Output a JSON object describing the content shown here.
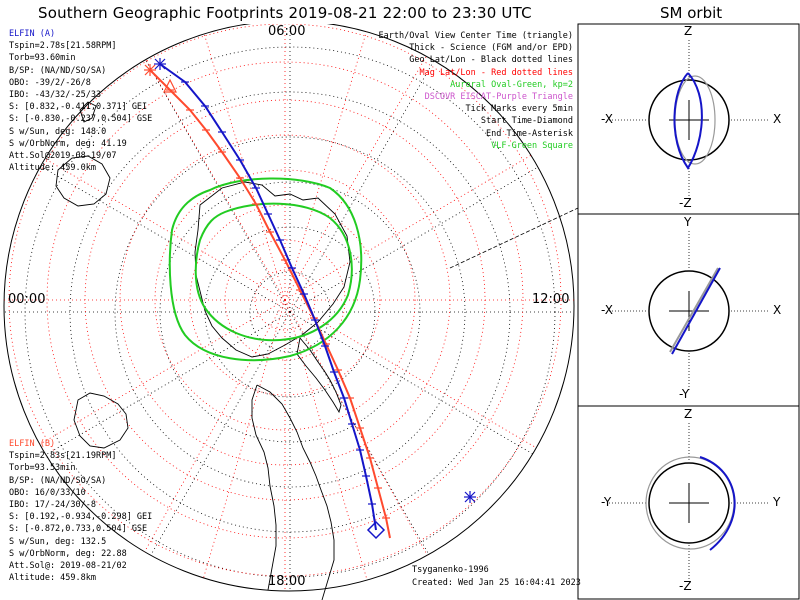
{
  "title": "Southern Geographic Footprints 2019-08-21 22:00 to 23:30 UTC",
  "sm_title": "SM orbit",
  "clock_labels": {
    "top": "06:00",
    "left": "00:00",
    "right": "12:00",
    "bottom": "18:00"
  },
  "elfin_a": {
    "header": "ELFIN (A)",
    "color": "#1515c8",
    "lines": [
      "Tspin=2.78s[21.58RPM]",
      "Torb=93.60min",
      "B/SP: (NA/ND/SO/SA)",
      "OBO: -39/2/-26/8",
      "IBO: -43/32/-25/33",
      "S: [0.832,-0.411,0.371] GEI",
      "S: [-0.830,-0.237,0.504] GSE",
      "S w/Sun, deg: 148.0",
      "S w/OrbNorm, deg: 41.19",
      "Att.Sol@2019-08-19/07",
      "Altitude: 459.0km"
    ]
  },
  "elfin_b": {
    "header": "ELFIN (B)",
    "color": "#ff4a2e",
    "lines": [
      "Tspin=2.83s[21.19RPM]",
      "Torb=93.53min",
      "B/SP: (NA/ND/SO/SA)",
      "OBO: 16/0/33/10",
      "IBO: 17/-24/30/-8",
      "S: [0.192,-0.934,-0.298] GEI",
      "S: [-0.872,0.733,0.504] GSE",
      "S w/Sun, deg: 132.5",
      "S w/OrbNorm, deg: 22.88",
      "Att.Sol@: 2019-08-21/02",
      "Altitude: 459.8km"
    ]
  },
  "legend": [
    {
      "text": "Earth/Oval View Center Time (triangle)",
      "color": "#000000"
    },
    {
      "text": "Thick - Science (FGM and/or EPD)",
      "color": "#000000"
    },
    {
      "text": "Geo Lat/Lon - Black dotted lines",
      "color": "#000000"
    },
    {
      "text": "Mag Lat/Lon - Red dotted lines",
      "color": "#ff0000"
    },
    {
      "text": "Auroral Oval-Green, kp=2",
      "color": "#22cc22"
    },
    {
      "text": "DSCOVR EISCAT-Purple Triangle",
      "color": "#cc55cc"
    },
    {
      "text": "Tick Marks every 5min",
      "color": "#000000"
    },
    {
      "text": "Start Time-Diamond",
      "color": "#000000"
    },
    {
      "text": "End Time-Asterisk",
      "color": "#000000"
    },
    {
      "text": "VLF-Green Square",
      "color": "#22cc22"
    }
  ],
  "credit": "Tsyganenko-1996",
  "created": "Created: Wed Jan 25 16:04:41 2023",
  "sm_panels": [
    {
      "top": "Z",
      "bottom": "-Z",
      "left": "-X",
      "right": "X"
    },
    {
      "top": "Y",
      "bottom": "-Y",
      "left": "-X",
      "right": "X"
    },
    {
      "top": "Z",
      "bottom": "-Z",
      "left": "-Y",
      "right": "Y"
    }
  ],
  "colors": {
    "elfin_a": "#1515c8",
    "elfin_b": "#ff4a2e",
    "oval": "#22cc22",
    "mag_grid": "#ff0000",
    "geo_grid": "#000000"
  }
}
